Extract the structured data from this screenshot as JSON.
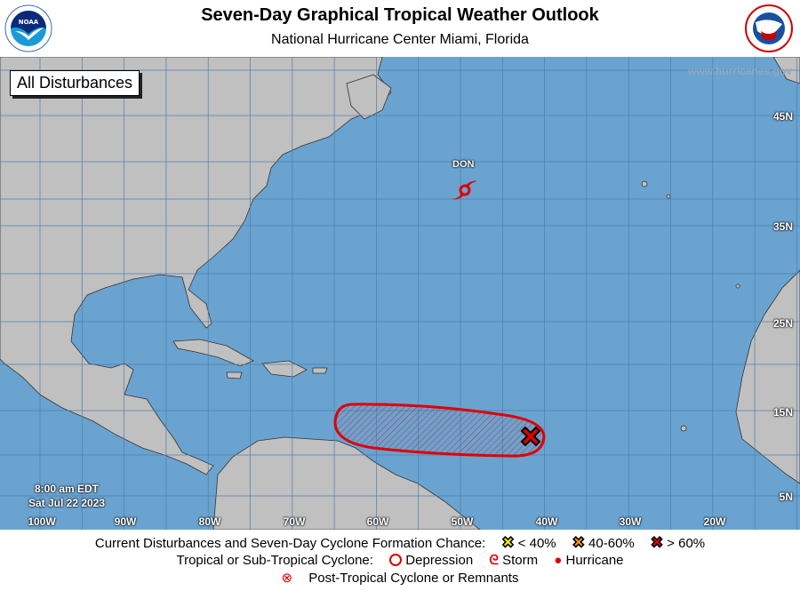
{
  "header": {
    "title": "Seven-Day Graphical Tropical Weather Outlook",
    "subtitle": "National Hurricane Center  Miami, Florida",
    "left_logo": "NOAA",
    "right_logo": "National Weather Service"
  },
  "map": {
    "panel_label": "All Disturbances",
    "website": "www.hurricanes.gov",
    "issued_time": "8:00 am EDT",
    "issued_date": "Sat Jul 22 2023",
    "lat_labels": [
      "45N",
      "35N",
      "25N",
      "15N",
      "5N"
    ],
    "lon_labels": [
      "100W",
      "90W",
      "80W",
      "70W",
      "60W",
      "50W",
      "40W",
      "30W",
      "20W"
    ],
    "storm": {
      "name": "DON",
      "type": "storm",
      "icon": "tropical-storm-icon"
    },
    "disturbance": {
      "chance": "> 60%",
      "color": "#e00000",
      "icon": "red-x-icon"
    }
  },
  "legend": {
    "formation_label": "Current Disturbances and Seven-Day Cyclone Formation Chance:",
    "low": "< 40%",
    "medium": "40-60%",
    "high": "> 60%",
    "colors": {
      "low": "#ffff00",
      "medium": "#ff9900",
      "high": "#e00000",
      "ocean": "#6ba3d0",
      "land": "#c0c0c0"
    },
    "cyclone_label": "Tropical or Sub-Tropical Cyclone:",
    "depression": "Depression",
    "storm": "Storm",
    "hurricane": "Hurricane",
    "post_tropical": "Post-Tropical Cyclone or Remnants"
  }
}
